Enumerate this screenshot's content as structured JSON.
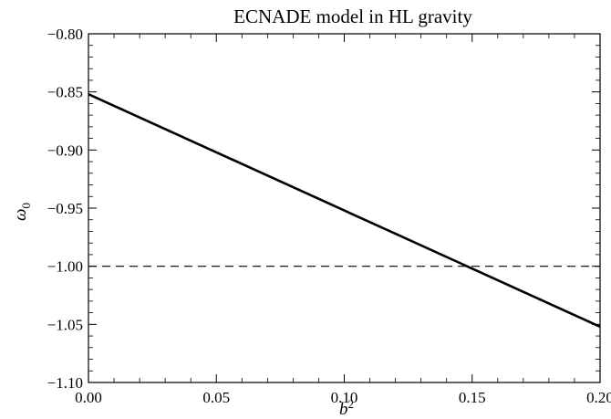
{
  "chart_data": {
    "type": "line",
    "title": "ECNADE model in HL gravity",
    "xlabel": "b",
    "xlabel_sup": "2",
    "ylabel": "ω",
    "ylabel_sub": "0",
    "xlim": [
      0.0,
      0.2
    ],
    "ylim": [
      -1.1,
      -0.8
    ],
    "x_ticks": [
      0.0,
      0.05,
      0.1,
      0.15,
      0.2
    ],
    "x_tick_labels": [
      "0.00",
      "0.05",
      "0.10",
      "0.15",
      "0.20"
    ],
    "y_ticks": [
      -0.8,
      -0.85,
      -0.9,
      -0.95,
      -1.0,
      -1.05,
      -1.1
    ],
    "y_tick_labels": [
      "−0.80",
      "−0.85",
      "−0.90",
      "−0.95",
      "−1.00",
      "−1.05",
      "−1.10"
    ],
    "grid": false,
    "series": [
      {
        "style": "solid",
        "color": "#000000",
        "x": [
          0.0,
          0.2
        ],
        "y": [
          -0.852,
          -1.052
        ]
      }
    ],
    "reference_lines": [
      {
        "orientation": "horizontal",
        "y": -1.0,
        "style": "dashed",
        "color": "#000000"
      }
    ]
  }
}
